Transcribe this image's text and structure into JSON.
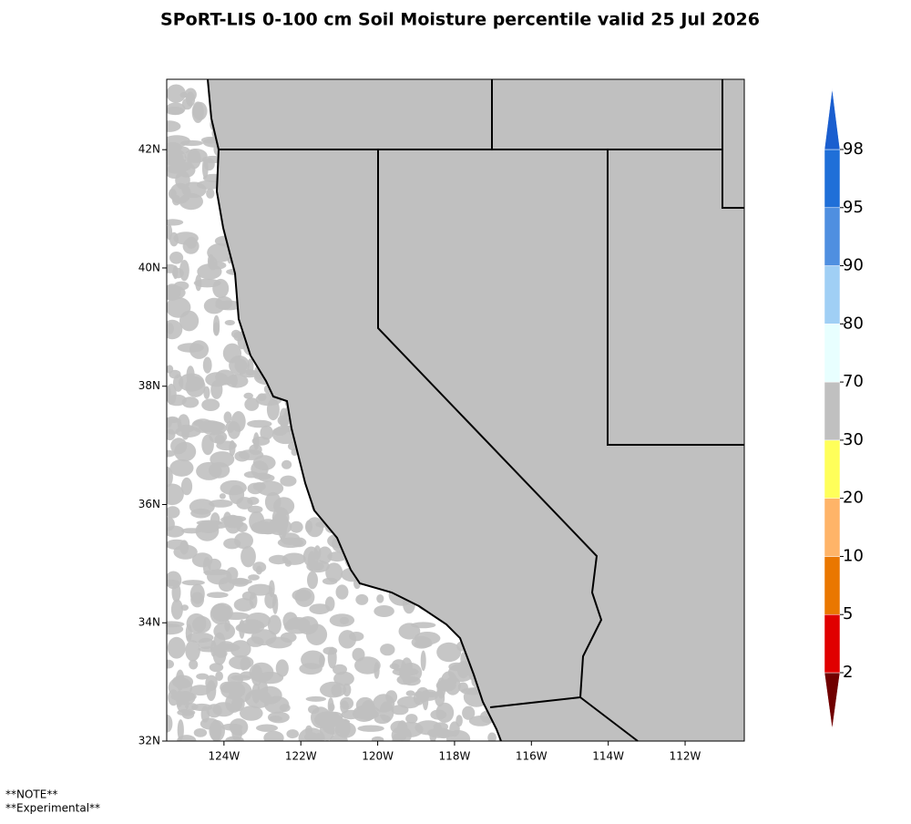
{
  "title": "SPoRT-LIS 0-100 cm Soil Moisture percentile valid 25 Jul 2026",
  "map": {
    "lon_range": [
      -125.49,
      -110.46
    ],
    "lat_range": [
      32,
      43.19
    ],
    "lat_ticks": [
      {
        "value": 32,
        "label": "32N"
      },
      {
        "value": 34,
        "label": "34N"
      },
      {
        "value": 36,
        "label": "36N"
      },
      {
        "value": 38,
        "label": "38N"
      },
      {
        "value": 40,
        "label": "40N"
      },
      {
        "value": 42,
        "label": "42N"
      }
    ],
    "lon_ticks": [
      {
        "value": -124,
        "label": "124W"
      },
      {
        "value": -122,
        "label": "122W"
      },
      {
        "value": -120,
        "label": "120W"
      },
      {
        "value": -118,
        "label": "118W"
      },
      {
        "value": -116,
        "label": "116W"
      },
      {
        "value": -114,
        "label": "114W"
      },
      {
        "value": -112,
        "label": "112W"
      }
    ]
  },
  "legend": {
    "levels": [
      2,
      5,
      10,
      20,
      30,
      70,
      80,
      90,
      95,
      98
    ],
    "colors": [
      "#700000",
      "#e00000",
      "#ea7700",
      "#ffb468",
      "#ffff5a",
      "#c0c0c0",
      "#e8ffff",
      "#a0cff5",
      "#4f8fe0",
      "#1f6fd8",
      "#1a5ecf"
    ]
  },
  "notes": [
    "**NOTE**",
    "**Experimental**"
  ]
}
